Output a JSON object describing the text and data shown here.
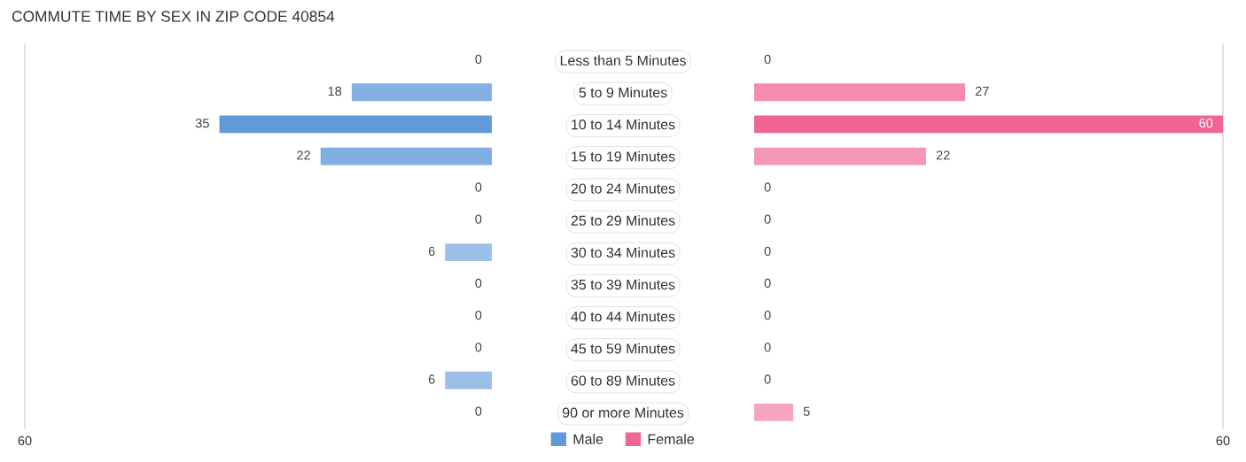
{
  "chart_data": [
    {
      "type": "bar",
      "orientation": "horizontal",
      "title": "COMMUTE TIME BY SEX IN ZIP CODE 40854",
      "categories": [
        "Less than 5 Minutes",
        "5 to 9 Minutes",
        "10 to 14 Minutes",
        "15 to 19 Minutes",
        "20 to 24 Minutes",
        "25 to 29 Minutes",
        "30 to 34 Minutes",
        "35 to 39 Minutes",
        "40 to 44 Minutes",
        "45 to 59 Minutes",
        "60 to 89 Minutes",
        "90 or more Minutes"
      ],
      "series": [
        {
          "name": "Male",
          "color": "#6199d9",
          "colors": [
            "#a9c8ec",
            "#82b1e2",
            "#6199d9",
            "#7eaee2",
            "#a9c8ec",
            "#a9c8ec",
            "#9bbfe9",
            "#a9c8ec",
            "#a9c8ec",
            "#a9c8ec",
            "#9bbfe9",
            "#a9c8ec"
          ],
          "values": [
            0,
            18,
            35,
            22,
            0,
            0,
            6,
            0,
            0,
            0,
            6,
            0
          ]
        }
      ],
      "data_labels": true,
      "xlim": [
        60,
        0
      ],
      "xticks": [
        60
      ],
      "legend": "bottom"
    },
    {
      "type": "bar",
      "orientation": "horizontal",
      "categories": [
        null,
        null,
        null,
        null,
        null,
        null,
        null,
        null,
        null,
        null,
        null,
        null
      ],
      "series": [
        {
          "name": "Female",
          "color": "#f06592",
          "colors": [
            "#f7aec6",
            "#f58caf",
            "#f06592",
            "#f597b7",
            "#f7aec6",
            "#f7aec6",
            "#f7aec6",
            "#f7aec6",
            "#f7aec6",
            "#f7aec6",
            "#f7aec6",
            "#f6a6c0"
          ],
          "values": [
            0,
            27,
            60,
            22,
            0,
            0,
            0,
            0,
            0,
            0,
            0,
            5
          ]
        }
      ],
      "data_labels": true,
      "xlim": [
        0,
        60
      ],
      "xticks": [
        60
      ],
      "legend": "bottom",
      "tick_labels": "x"
    }
  ]
}
